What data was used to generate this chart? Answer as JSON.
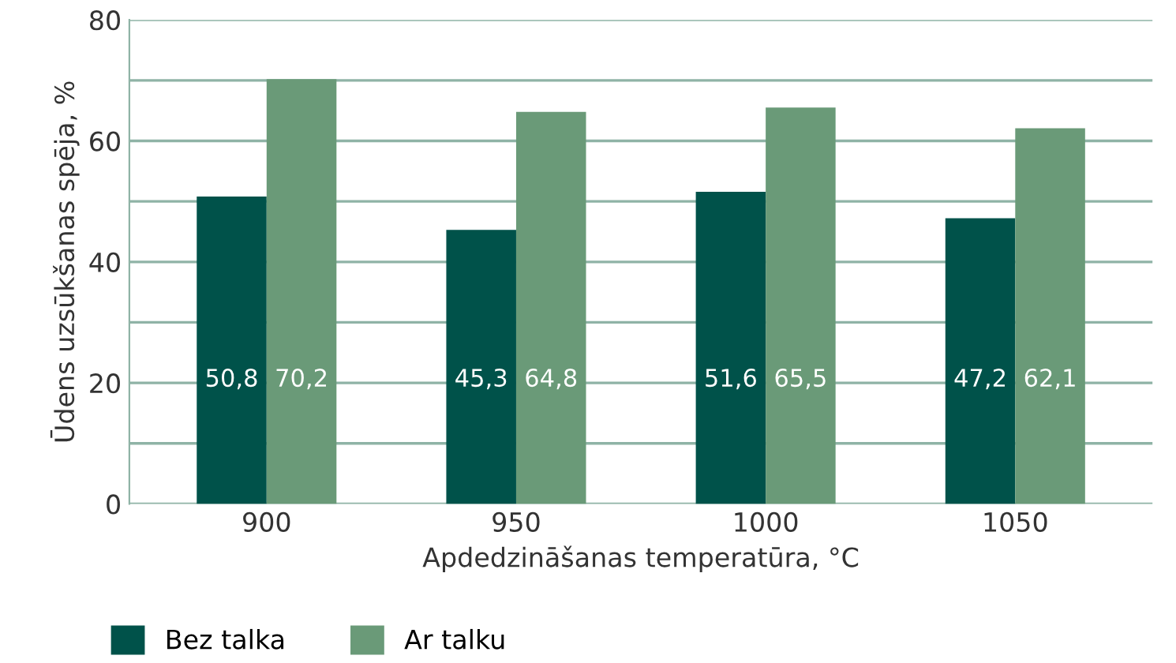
{
  "chart_data": {
    "type": "bar",
    "xlabel": "Apdedzināšanas temperatūra, °C",
    "ylabel": "Ūdens uzsūkšanas spēja, %",
    "categories": [
      "900",
      "950",
      "1000",
      "1050"
    ],
    "series": [
      {
        "name": "Bez talka",
        "color": "#00524a",
        "values": [
          50.8,
          45.3,
          51.6,
          47.2
        ],
        "value_labels": [
          "50,8",
          "45,3",
          "51,6",
          "47,2"
        ]
      },
      {
        "name": "Ar talku",
        "color": "#6a9a78",
        "values": [
          70.2,
          64.8,
          65.5,
          62.1
        ],
        "value_labels": [
          "70,2",
          "64,8",
          "65,5",
          "62,1"
        ]
      }
    ],
    "ylim": [
      0,
      80
    ],
    "yticks": [
      0,
      {
        "value": 10,
        "label": null
      },
      20,
      {
        "value": 30,
        "label": null
      },
      40,
      {
        "value": 50,
        "label": null
      },
      60,
      {
        "value": 70,
        "label": null
      },
      80
    ],
    "grid": "y",
    "legend": "bottom"
  }
}
